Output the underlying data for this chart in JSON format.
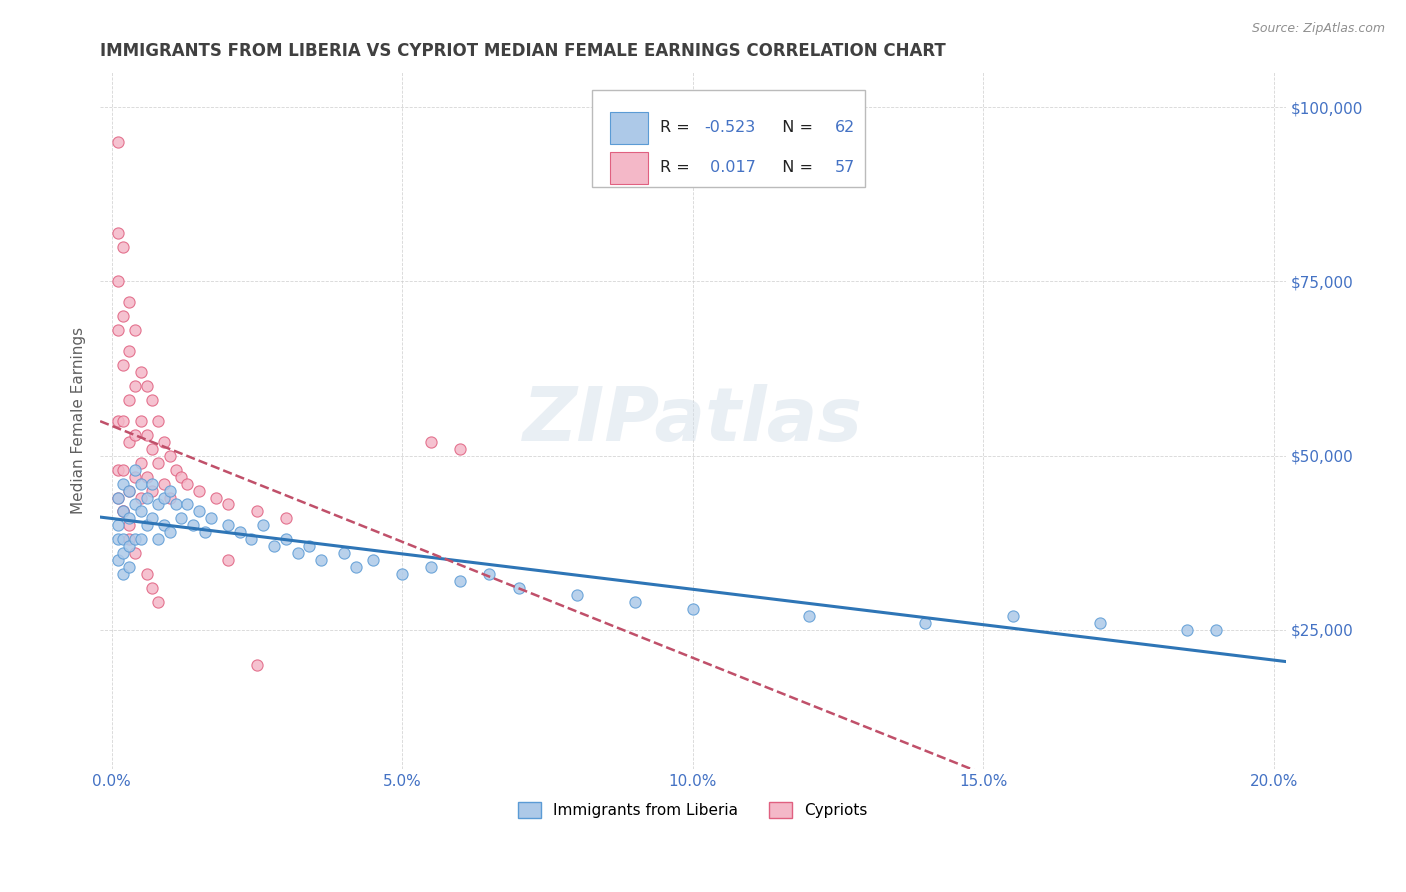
{
  "title": "IMMIGRANTS FROM LIBERIA VS CYPRIOT MEDIAN FEMALE EARNINGS CORRELATION CHART",
  "source": "Source: ZipAtlas.com",
  "ylabel": "Median Female Earnings",
  "xlim": [
    -0.002,
    0.202
  ],
  "ylim": [
    5000,
    105000
  ],
  "yticks": [
    25000,
    50000,
    75000,
    100000
  ],
  "ytick_labels": [
    "$25,000",
    "$50,000",
    "$75,000",
    "$100,000"
  ],
  "xticks": [
    0.0,
    0.05,
    0.1,
    0.15,
    0.2
  ],
  "xtick_labels": [
    "0.0%",
    "5.0%",
    "10.0%",
    "15.0%",
    "20.0%"
  ],
  "series1_label": "Immigrants from Liberia",
  "series1_color": "#adc9e8",
  "series1_edge_color": "#5b9bd5",
  "series1_R": -0.523,
  "series1_N": 62,
  "series1_line_color": "#2e75b6",
  "series2_label": "Cypriots",
  "series2_color": "#f4b8c8",
  "series2_edge_color": "#e06080",
  "series2_R": 0.017,
  "series2_N": 57,
  "series2_line_color": "#c0506a",
  "watermark": "ZIPatlas",
  "title_color": "#404040",
  "axis_color": "#606060",
  "tick_color": "#4472c4",
  "grid_color": "#cccccc",
  "background_color": "#ffffff",
  "series1_x": [
    0.001,
    0.001,
    0.001,
    0.001,
    0.002,
    0.002,
    0.002,
    0.002,
    0.002,
    0.003,
    0.003,
    0.003,
    0.003,
    0.004,
    0.004,
    0.004,
    0.005,
    0.005,
    0.005,
    0.006,
    0.006,
    0.007,
    0.007,
    0.008,
    0.008,
    0.009,
    0.009,
    0.01,
    0.01,
    0.011,
    0.012,
    0.013,
    0.014,
    0.015,
    0.016,
    0.017,
    0.02,
    0.022,
    0.024,
    0.026,
    0.028,
    0.03,
    0.032,
    0.034,
    0.036,
    0.04,
    0.042,
    0.045,
    0.05,
    0.055,
    0.06,
    0.065,
    0.07,
    0.08,
    0.09,
    0.1,
    0.12,
    0.14,
    0.155,
    0.17,
    0.185,
    0.19
  ],
  "series1_y": [
    44000,
    40000,
    38000,
    35000,
    46000,
    42000,
    38000,
    36000,
    33000,
    45000,
    41000,
    37000,
    34000,
    48000,
    43000,
    38000,
    46000,
    42000,
    38000,
    44000,
    40000,
    46000,
    41000,
    43000,
    38000,
    44000,
    40000,
    45000,
    39000,
    43000,
    41000,
    43000,
    40000,
    42000,
    39000,
    41000,
    40000,
    39000,
    38000,
    40000,
    37000,
    38000,
    36000,
    37000,
    35000,
    36000,
    34000,
    35000,
    33000,
    34000,
    32000,
    33000,
    31000,
    30000,
    29000,
    28000,
    27000,
    26000,
    27000,
    26000,
    25000,
    25000
  ],
  "series2_x": [
    0.001,
    0.001,
    0.001,
    0.001,
    0.001,
    0.001,
    0.002,
    0.002,
    0.002,
    0.002,
    0.002,
    0.002,
    0.003,
    0.003,
    0.003,
    0.003,
    0.003,
    0.004,
    0.004,
    0.004,
    0.004,
    0.005,
    0.005,
    0.005,
    0.005,
    0.006,
    0.006,
    0.006,
    0.007,
    0.007,
    0.007,
    0.008,
    0.008,
    0.009,
    0.009,
    0.01,
    0.01,
    0.011,
    0.012,
    0.013,
    0.015,
    0.018,
    0.02,
    0.025,
    0.03,
    0.055,
    0.06,
    0.02,
    0.025,
    0.001,
    0.002,
    0.003,
    0.003,
    0.004,
    0.006,
    0.007,
    0.008
  ],
  "series2_y": [
    95000,
    82000,
    75000,
    68000,
    55000,
    48000,
    80000,
    70000,
    63000,
    55000,
    48000,
    42000,
    72000,
    65000,
    58000,
    52000,
    45000,
    68000,
    60000,
    53000,
    47000,
    62000,
    55000,
    49000,
    44000,
    60000,
    53000,
    47000,
    58000,
    51000,
    45000,
    55000,
    49000,
    52000,
    46000,
    50000,
    44000,
    48000,
    47000,
    46000,
    45000,
    44000,
    43000,
    42000,
    41000,
    52000,
    51000,
    35000,
    20000,
    44000,
    42000,
    40000,
    38000,
    36000,
    33000,
    31000,
    29000
  ]
}
